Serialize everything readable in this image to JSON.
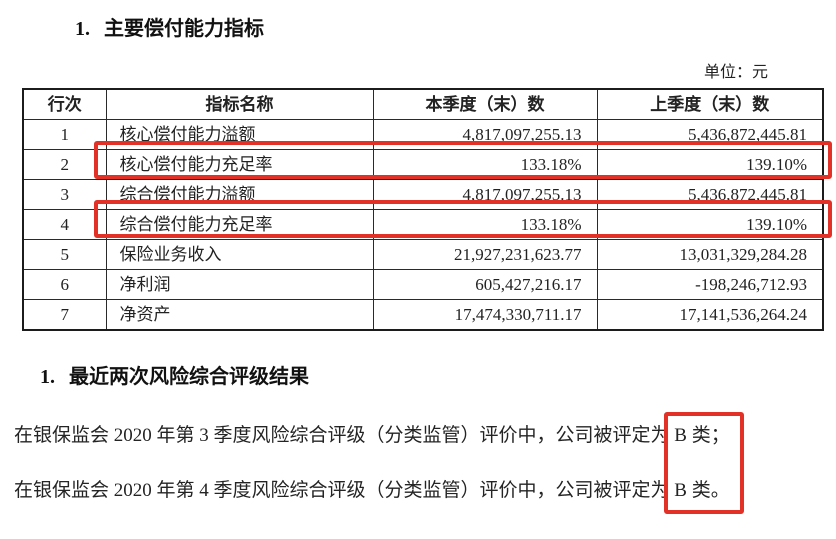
{
  "colors": {
    "highlight_red": "#e23126",
    "text": "#1e1e1e",
    "table_border": "#2a2a2a"
  },
  "sections": [
    {
      "marker": "1.",
      "title": "主要偿付能力指标"
    },
    {
      "marker": "1.",
      "title": "最近两次风险综合评级结果"
    }
  ],
  "unit_label": "单位：元",
  "table": {
    "headers": [
      "行次",
      "指标名称",
      "本季度（末）数",
      "上季度（末）数"
    ],
    "rows": [
      {
        "no": "1",
        "name": "核心偿付能力溢额",
        "current": "4,817,097,255.13",
        "previous": "5,436,872,445.81",
        "highlighted": false
      },
      {
        "no": "2",
        "name": "核心偿付能力充足率",
        "current": "133.18%",
        "previous": "139.10%",
        "highlighted": true
      },
      {
        "no": "3",
        "name": "综合偿付能力溢额",
        "current": "4,817,097,255.13",
        "previous": "5,436,872,445.81",
        "highlighted": false
      },
      {
        "no": "4",
        "name": "综合偿付能力充足率",
        "current": "133.18%",
        "previous": "139.10%",
        "highlighted": true
      },
      {
        "no": "5",
        "name": "保险业务收入",
        "current": "21,927,231,623.77",
        "previous": "13,031,329,284.28",
        "highlighted": false
      },
      {
        "no": "6",
        "name": "净利润",
        "current": "605,427,216.17",
        "previous": "-198,246,712.93",
        "highlighted": false
      },
      {
        "no": "7",
        "name": "净资产",
        "current": "17,474,330,711.17",
        "previous": "17,141,536,264.24",
        "highlighted": false
      }
    ]
  },
  "ratings": {
    "paragraphs": [
      {
        "prefix": "在银保监会 2020 年第 3 季度风险综合评级（分类监管）评价中，公司被评定为",
        "highlight": "B 类；"
      },
      {
        "prefix": "在银保监会 2020 年第 4 季度风险综合评级（分类监管）评价中，公司被评定为",
        "highlight": "B 类。"
      }
    ]
  }
}
